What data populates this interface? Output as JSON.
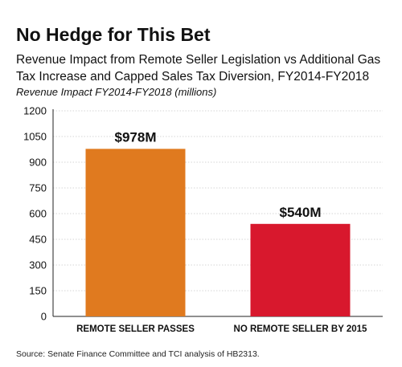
{
  "chart_data": {
    "type": "bar",
    "title": "No Hedge for This Bet",
    "subtitle": "Revenue Impact from Remote Seller Legislation vs Additional Gas Tax Increase and Capped Sales Tax Diversion, FY2014-FY2018",
    "ylabel": "Revenue Impact FY2014-FY2018 (millions)",
    "xlabel": "",
    "categories": [
      "REMOTE SELLER PASSES",
      "NO REMOTE SELLER BY 2015"
    ],
    "values": [
      978,
      540
    ],
    "data_labels": [
      "$978M",
      "$540M"
    ],
    "bar_colors": [
      "#E07A1F",
      "#D8182D"
    ],
    "ylim": [
      0,
      1200
    ],
    "yticks": [
      0,
      150,
      300,
      450,
      600,
      750,
      900,
      1050,
      1200
    ],
    "ytick_labels": [
      "0",
      "150",
      "300",
      "450",
      "600",
      "750",
      "900",
      "1050",
      "1200"
    ],
    "grid": true,
    "legend": "none"
  },
  "source": "Source: Senate Finance Committee and TCI analysis of HB2313."
}
